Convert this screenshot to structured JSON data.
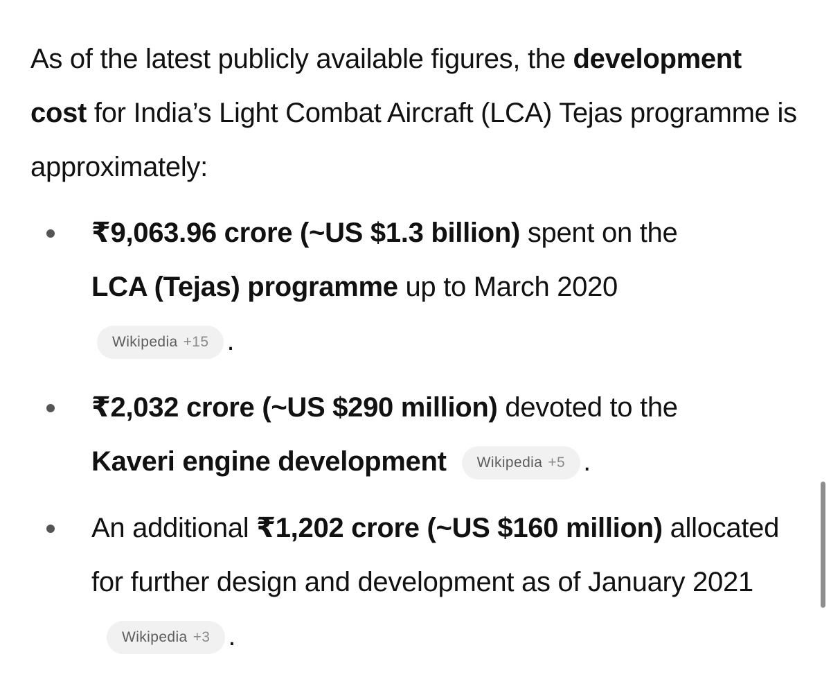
{
  "intro": {
    "text_1": "As of the latest publicly available figures, the ",
    "bold_1": "development cost",
    "text_2": " for India’s Light Combat Aircraft (LCA) Tejas programme is approximately:"
  },
  "items": [
    {
      "bold_1": "₹9,063.96 crore (~US $1.3 billion)",
      "text_1": " spent on the ",
      "bold_2": "LCA (Tejas) programme",
      "text_2": " up to March 2020",
      "source": {
        "name": "Wikipedia",
        "count": "+15"
      },
      "end": "."
    },
    {
      "bold_1": "₹2,032 crore (~US $290 million)",
      "text_1": " devoted to the ",
      "bold_2": "Kaveri engine development",
      "source": {
        "name": "Wikipedia",
        "count": "+5"
      },
      "end": "."
    },
    {
      "text_1": "An additional ",
      "bold_1": "₹1,202 crore (~US $160 million)",
      "text_2": " allocated for further design and development as of January 2021",
      "source": {
        "name": "Wikipedia",
        "count": "+3"
      },
      "end": "."
    }
  ]
}
